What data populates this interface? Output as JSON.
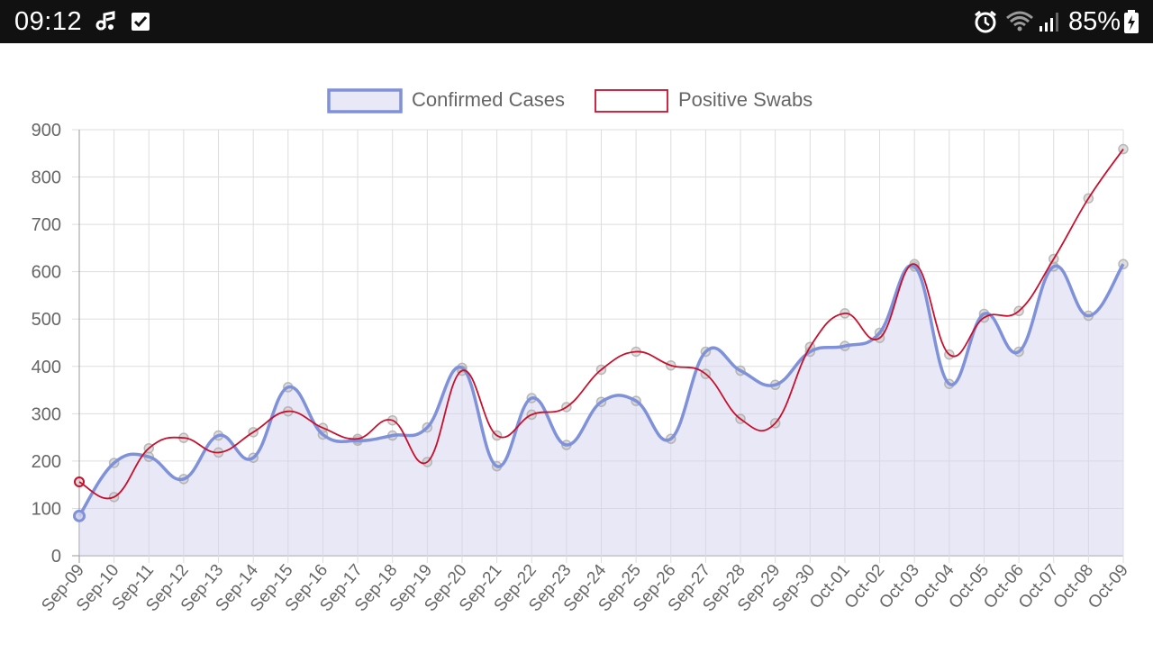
{
  "status_bar": {
    "time": "09:12",
    "battery": "85%",
    "icons": [
      "music-note-icon",
      "checkbox-icon",
      "alarm-icon",
      "wifi-icon",
      "signal-icon",
      "battery-charging-icon"
    ]
  },
  "colors": {
    "confirmed_line": "#7f91d9",
    "confirmed_fill": "rgba(210,210,238,0.5)",
    "swabs_line": "#c8102e"
  },
  "chart_data": {
    "type": "line",
    "categories": [
      "Sep-09",
      "Sep-10",
      "Sep-11",
      "Sep-12",
      "Sep-13",
      "Sep-14",
      "Sep-15",
      "Sep-16",
      "Sep-17",
      "Sep-18",
      "Sep-19",
      "Sep-20",
      "Sep-21",
      "Sep-22",
      "Sep-23",
      "Sep-24",
      "Sep-25",
      "Sep-26",
      "Sep-27",
      "Sep-28",
      "Sep-29",
      "Sep-30",
      "Oct-01",
      "Oct-02",
      "Oct-03",
      "Oct-04",
      "Oct-05",
      "Oct-06",
      "Oct-07",
      "Oct-08",
      "Oct-09"
    ],
    "series": [
      {
        "name": "Confirmed Cases",
        "values": [
          84,
          196,
          209,
          162,
          254,
          207,
          356,
          256,
          243,
          254,
          271,
          397,
          189,
          333,
          234,
          325,
          327,
          247,
          431,
          391,
          361,
          431,
          443,
          471,
          611,
          363,
          511,
          431,
          611,
          507,
          616
        ],
        "fill": true
      },
      {
        "name": "Positive Swabs",
        "values": [
          156,
          124,
          227,
          249,
          218,
          261,
          305,
          270,
          247,
          286,
          198,
          391,
          254,
          298,
          314,
          393,
          431,
          402,
          384,
          289,
          280,
          441,
          512,
          460,
          616,
          425,
          503,
          517,
          627,
          755,
          859
        ],
        "fill": false
      }
    ],
    "ylim": [
      0,
      900
    ],
    "yticks": [
      "0",
      "100",
      "200",
      "300",
      "400",
      "500",
      "600",
      "700",
      "800",
      "900"
    ],
    "grid": true,
    "legend": "top-center"
  }
}
